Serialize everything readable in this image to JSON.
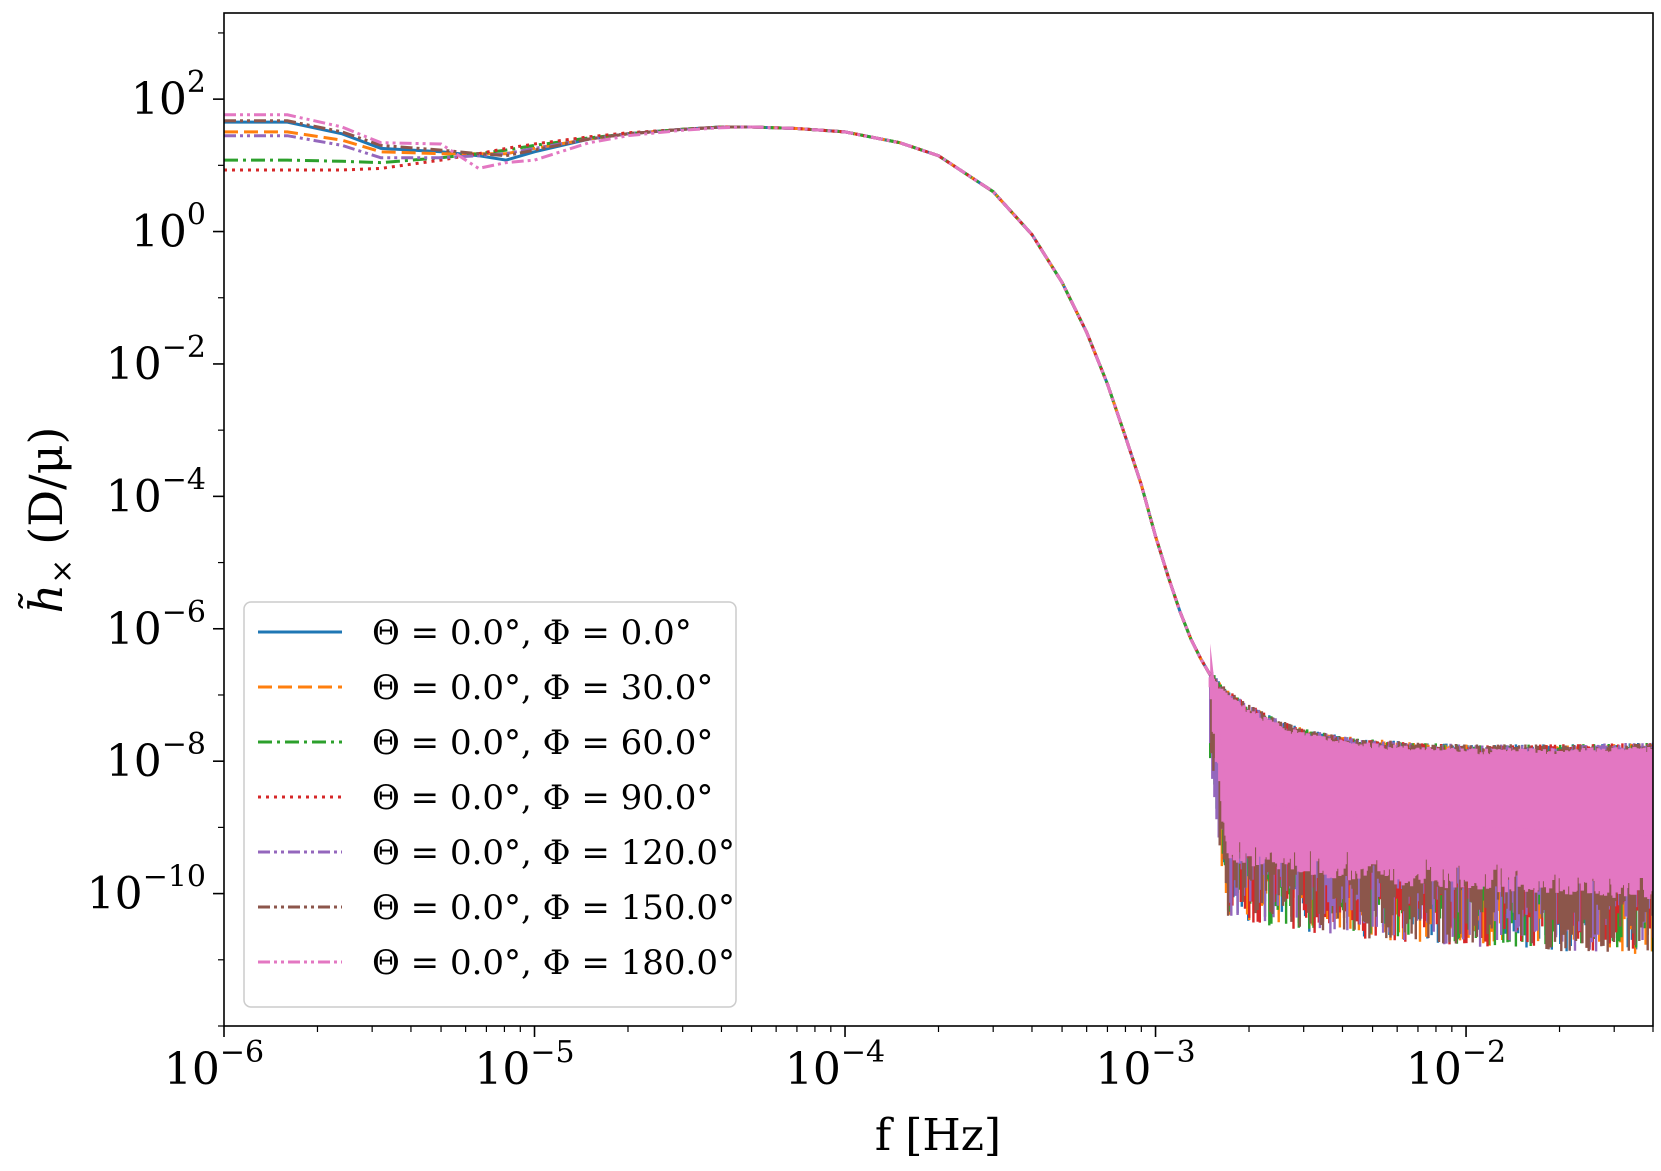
{
  "chart_data": {
    "type": "line",
    "xlabel": "f [Hz]",
    "ylabel_main": "h̃",
    "ylabel_sub": "×",
    "ylabel_unit": "(D/μ)",
    "x_scale": "log",
    "y_scale": "log",
    "xlim": [
      1e-06,
      0.04
    ],
    "ylim": [
      1e-12,
      2000.0
    ],
    "x_ticks": [
      {
        "value": 1e-06,
        "base": "10",
        "exp": "−6"
      },
      {
        "value": 1e-05,
        "base": "10",
        "exp": "−5"
      },
      {
        "value": 0.0001,
        "base": "10",
        "exp": "−4"
      },
      {
        "value": 0.001,
        "base": "10",
        "exp": "−3"
      },
      {
        "value": 0.01,
        "base": "10",
        "exp": "−2"
      }
    ],
    "y_ticks": [
      {
        "value": 100.0,
        "base": "10",
        "exp": "2"
      },
      {
        "value": 1.0,
        "base": "10",
        "exp": "0"
      },
      {
        "value": 0.01,
        "base": "10",
        "exp": "−2"
      },
      {
        "value": 0.0001,
        "base": "10",
        "exp": "−4"
      },
      {
        "value": 1e-06,
        "base": "10",
        "exp": "−6"
      },
      {
        "value": 1e-08,
        "base": "10",
        "exp": "−8"
      },
      {
        "value": 1e-10,
        "base": "10",
        "exp": "−10"
      }
    ],
    "grid": false,
    "legend_position": "lower-left",
    "series": [
      {
        "name": "Θ = 0.0°,  Φ = 0.0°",
        "color": "#1f77b4",
        "dash": "solid",
        "x": [
          1e-06,
          1.6e-06,
          2.4e-06,
          3.2e-06,
          5e-06,
          6.6e-06,
          8.1e-06,
          1e-05,
          1.5e-05,
          2e-05,
          3e-05,
          4e-05,
          5e-05
        ],
        "y": [
          45,
          45,
          30,
          18,
          16,
          14,
          12,
          16,
          25,
          30,
          35,
          38,
          38
        ]
      },
      {
        "name": "Θ = 0.0°,  Φ = 30.0°",
        "color": "#ff7f0e",
        "dash": "dashed",
        "x": [
          1e-06,
          1.6e-06,
          2.4e-06,
          3.2e-06,
          5e-06,
          6.6e-06,
          8.1e-06,
          1e-05,
          1.5e-05,
          2e-05,
          3e-05,
          4e-05,
          5e-05
        ],
        "y": [
          32,
          32,
          24,
          16,
          15,
          15,
          15,
          18,
          25,
          30,
          35,
          38,
          38
        ]
      },
      {
        "name": "Θ = 0.0°,  Φ = 60.0°",
        "color": "#2ca02c",
        "dash": "dashdot",
        "x": [
          1e-06,
          1.6e-06,
          2.4e-06,
          3.2e-06,
          5e-06,
          6.6e-06,
          8.1e-06,
          1e-05,
          1.5e-05,
          2e-05,
          3e-05,
          4e-05,
          5e-05
        ],
        "y": [
          12,
          12,
          11.5,
          11,
          13,
          15,
          17,
          20,
          26,
          30,
          35,
          38,
          38
        ]
      },
      {
        "name": "Θ = 0.0°,  Φ = 90.0°",
        "color": "#d62728",
        "dash": "dotted",
        "x": [
          1e-06,
          1.6e-06,
          2.4e-06,
          3.2e-06,
          5e-06,
          6.6e-06,
          8.1e-06,
          1e-05,
          1.5e-05,
          2e-05,
          3e-05,
          4e-05,
          5e-05
        ],
        "y": [
          8.5,
          8.5,
          8.5,
          9,
          12,
          15,
          18,
          21,
          27,
          31,
          35,
          38,
          38
        ]
      },
      {
        "name": "Θ = 0.0°,  Φ = 120.0°",
        "color": "#9467bd",
        "dash": "dashdotdot",
        "x": [
          1e-06,
          1.6e-06,
          2.4e-06,
          3.2e-06,
          5e-06,
          6.6e-06,
          8.1e-06,
          1e-05,
          1.5e-05,
          2e-05,
          3e-05,
          4e-05,
          5e-05
        ],
        "y": [
          28,
          28,
          20,
          13,
          13,
          14,
          15,
          18,
          25,
          30,
          35,
          38,
          38
        ]
      },
      {
        "name": "Θ = 0.0°,  Φ = 150.0°",
        "color": "#8c564b",
        "dash": "dashdotdot",
        "x": [
          1e-06,
          1.6e-06,
          2.4e-06,
          3.2e-06,
          5e-06,
          6.6e-06,
          8.1e-06,
          1e-05,
          1.5e-05,
          2e-05,
          3e-05,
          4e-05,
          5e-05
        ],
        "y": [
          47,
          47,
          32,
          20,
          17,
          15,
          14,
          17,
          25,
          30,
          35,
          38,
          38
        ]
      },
      {
        "name": "Θ = 0.0°,  Φ = 180.0°",
        "color": "#e377c2",
        "dash": "dashdotdot",
        "x": [
          1e-06,
          1.6e-06,
          2.4e-06,
          3.2e-06,
          5e-06,
          6.6e-06,
          8.1e-06,
          1e-05,
          1.5e-05,
          2e-05,
          3e-05,
          4e-05,
          5e-05
        ],
        "y": [
          58,
          58,
          38,
          22,
          21,
          9,
          11,
          12,
          22,
          28,
          34,
          37,
          38
        ]
      }
    ],
    "common_decay": {
      "x": [
        5e-05,
        7e-05,
        0.0001,
        0.00015,
        0.0002,
        0.0003,
        0.0004,
        0.0005,
        0.0006,
        0.0007,
        0.0008,
        0.0009,
        0.001,
        0.0011,
        0.0012,
        0.0013,
        0.0014,
        0.0015
      ],
      "y": [
        38,
        36,
        32,
        22,
        14,
        4,
        0.9,
        0.17,
        0.03,
        0.005,
        0.0008,
        0.00015,
        2.5e-05,
        6e-06,
        1.8e-06,
        7e-07,
        3.5e-07,
        2e-07
      ]
    },
    "noise_band": {
      "x_start": 0.0015,
      "x_end": 0.04,
      "upper": {
        "x": [
          0.0015,
          0.0017,
          0.002,
          0.0025,
          0.003,
          0.004,
          0.005,
          0.007,
          0.01,
          0.02,
          0.04
        ],
        "y": [
          2e-07,
          1e-07,
          6e-08,
          3.5e-08,
          2.6e-08,
          2e-08,
          1.8e-08,
          1.6e-08,
          1.5e-08,
          1.5e-08,
          1.6e-08
        ]
      },
      "lower": {
        "x": [
          0.0015,
          0.0017,
          0.002,
          0.0025,
          0.003,
          0.004,
          0.005,
          0.007,
          0.01,
          0.02,
          0.04
        ],
        "y": [
          2e-07,
          1e-09,
          8e-10,
          7e-10,
          6e-10,
          5e-10,
          4.5e-10,
          4e-10,
          3.5e-10,
          3e-10,
          2.5e-10
        ]
      }
    }
  }
}
